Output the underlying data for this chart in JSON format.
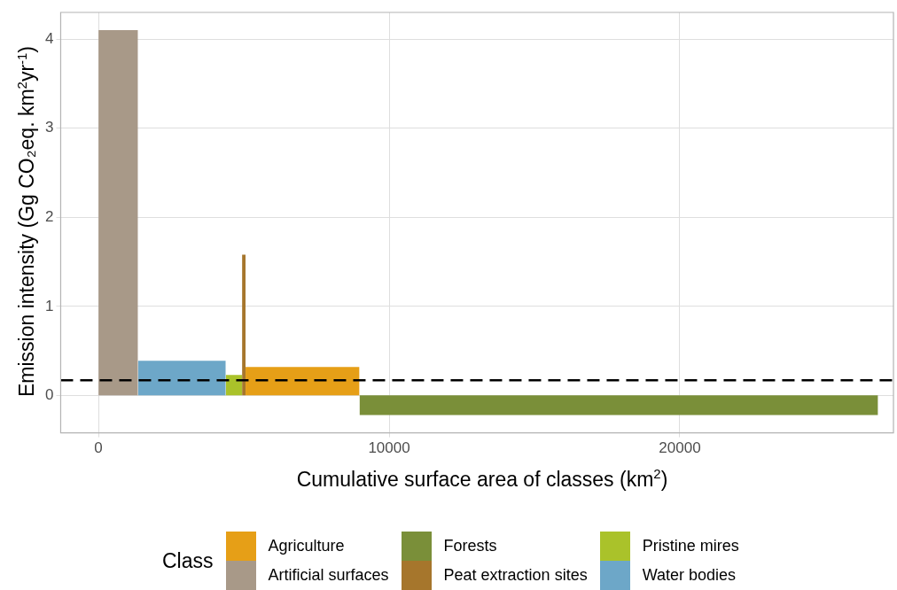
{
  "chart_data": {
    "type": "area",
    "xlabel": "Cumulative surface area of classes (km$^{2}$)",
    "ylabel": "Emission intensity (Gg CO₂eq. km$^{2}$yr$^{-1}$)",
    "legend_title": "Class",
    "legend": "bottom",
    "grid": true,
    "xlim": [
      -1300,
      27350
    ],
    "xticks": [
      0,
      10000,
      20000
    ],
    "ylim": [
      -0.42,
      4.3
    ],
    "yticks": [
      0,
      1,
      2,
      3,
      4
    ],
    "series": [
      {
        "name": "Agriculture",
        "color": "#e69f17",
        "x": [
          5060,
          8980
        ],
        "values": [
          0.32,
          0.32
        ]
      },
      {
        "name": "Artificial surfaces",
        "color": "#a89988",
        "x": [
          0,
          1360
        ],
        "values": [
          4.1,
          4.1
        ]
      },
      {
        "name": "Forests",
        "color": "#7a8f39",
        "x": [
          8980,
          26820
        ],
        "values": [
          -0.22,
          -0.22
        ]
      },
      {
        "name": "Peat extraction sites",
        "color": "#a6762c",
        "x": [
          4940,
          5060
        ],
        "values": [
          1.58,
          1.58
        ]
      },
      {
        "name": "Pristine mires",
        "color": "#aac22a",
        "x": [
          4380,
          4940
        ],
        "values": [
          0.23,
          0.23
        ]
      },
      {
        "name": "Water bodies",
        "color": "#6da7c8",
        "x": [
          1360,
          4380
        ],
        "values": [
          0.39,
          0.39
        ]
      }
    ],
    "ref_lines": [
      {
        "axis": "y",
        "value": 0.17,
        "color": "#000000",
        "line_style": "dashed"
      }
    ]
  }
}
